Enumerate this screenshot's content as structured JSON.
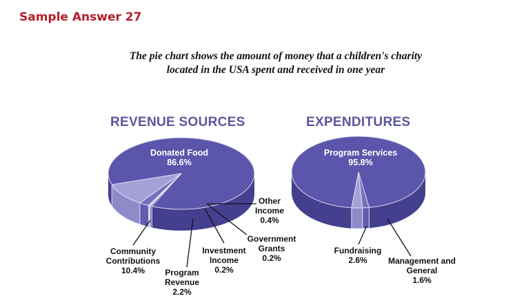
{
  "header": {
    "title": "Sample Answer 27"
  },
  "subtitle": {
    "line1": "The pie chart shows the amount of money that a children's charity",
    "line2": "located in the USA spent and received in one year"
  },
  "colors": {
    "header": "#b5202a",
    "main": "#5b56ab",
    "side": "#44408f",
    "light": "#a5a1d6",
    "mid": "#7570bd"
  },
  "chart_data": [
    {
      "type": "pie",
      "title": "REVENUE SOURCES",
      "slices": [
        {
          "label": "Donated Food",
          "value": 86.6,
          "pct": "86.6%"
        },
        {
          "label": "Community Contributions",
          "value": 10.4,
          "pct": "10.4%"
        },
        {
          "label": "Program Revenue",
          "value": 2.2,
          "pct": "2.2%"
        },
        {
          "label": "Investment Income",
          "value": 0.2,
          "pct": "0.2%"
        },
        {
          "label": "Government Grants",
          "value": 0.2,
          "pct": "0.2%"
        },
        {
          "label": "Other Income",
          "value": 0.4,
          "pct": "0.4%"
        }
      ]
    },
    {
      "type": "pie",
      "title": "EXPENDITURES",
      "slices": [
        {
          "label": "Program Services",
          "value": 95.8,
          "pct": "95.8%"
        },
        {
          "label": "Fundraising",
          "value": 2.6,
          "pct": "2.6%"
        },
        {
          "label": "Management and General",
          "value": 1.6,
          "pct": "1.6%"
        }
      ]
    }
  ]
}
